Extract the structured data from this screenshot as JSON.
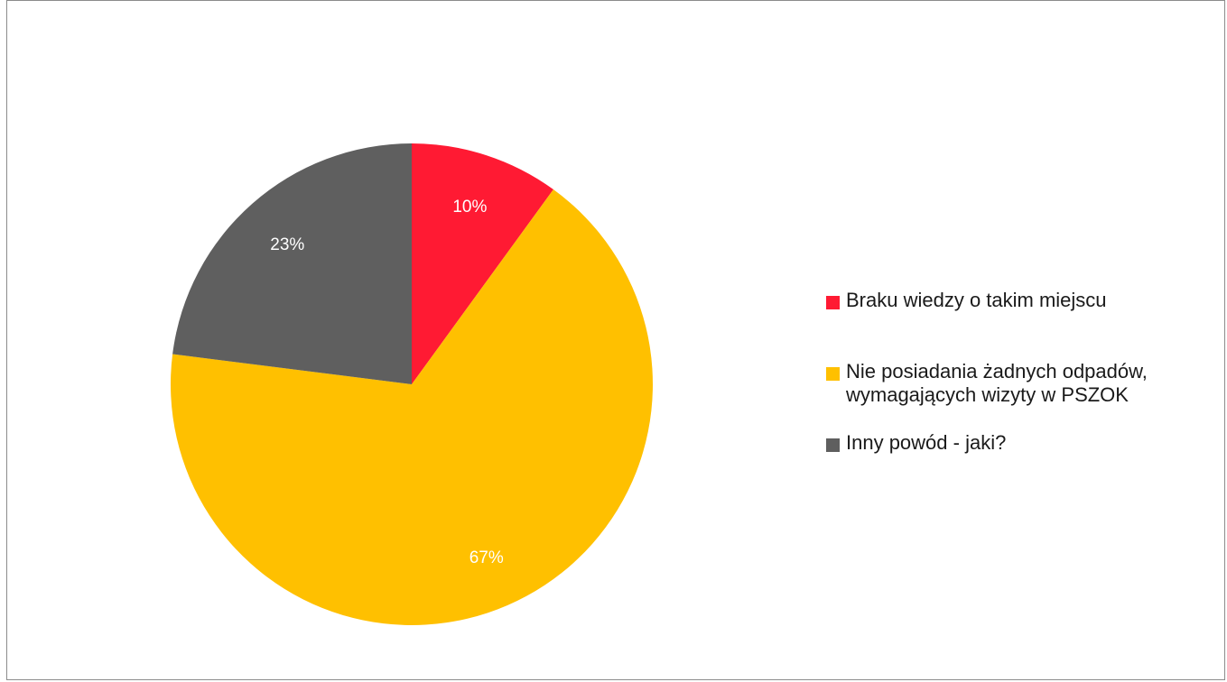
{
  "chart_data": {
    "type": "pie",
    "slices": [
      {
        "label": "Braku wiedzy o takim miejscu",
        "value": 10,
        "display": "10%",
        "color": "#ff1a33"
      },
      {
        "label": "Nie posiadania żadnych odpadów,\nwymagających wizyty w PSZOK",
        "value": 67,
        "display": "67%",
        "color": "#ffc000"
      },
      {
        "label": "Inny powód - jaki?",
        "value": 23,
        "display": "23%",
        "color": "#5f5f5f"
      }
    ],
    "legend_position": "right"
  }
}
